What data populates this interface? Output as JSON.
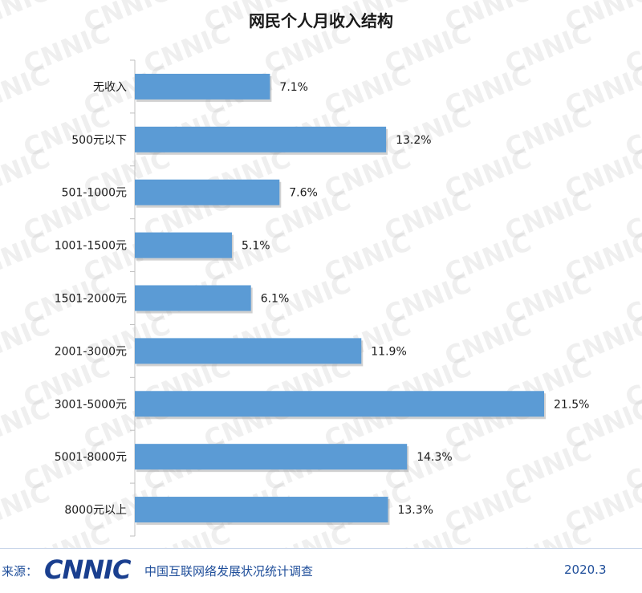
{
  "chart_data": {
    "type": "bar",
    "orientation": "horizontal",
    "title": "网民个人月收入结构",
    "categories": [
      "无收入",
      "500元以下",
      "501-1000元",
      "1001-1500元",
      "1501-2000元",
      "2001-3000元",
      "3001-5000元",
      "5001-8000元",
      "8000元以上"
    ],
    "values": [
      7.1,
      13.2,
      7.6,
      5.1,
      6.1,
      11.9,
      21.5,
      14.3,
      13.3
    ],
    "value_labels": [
      "7.1%",
      "13.2%",
      "7.6%",
      "5.1%",
      "6.1%",
      "11.9%",
      "21.5%",
      "14.3%",
      "13.3%"
    ],
    "xlim": [
      0,
      21.5
    ],
    "grid": false,
    "bar_color": "#5b9bd5"
  },
  "watermark": "CNNIC",
  "footer": {
    "source_prefix": "来源：",
    "brand": "CNNIC",
    "survey_name": "中国互联网络发展状况统计调查",
    "date": "2020.3"
  }
}
